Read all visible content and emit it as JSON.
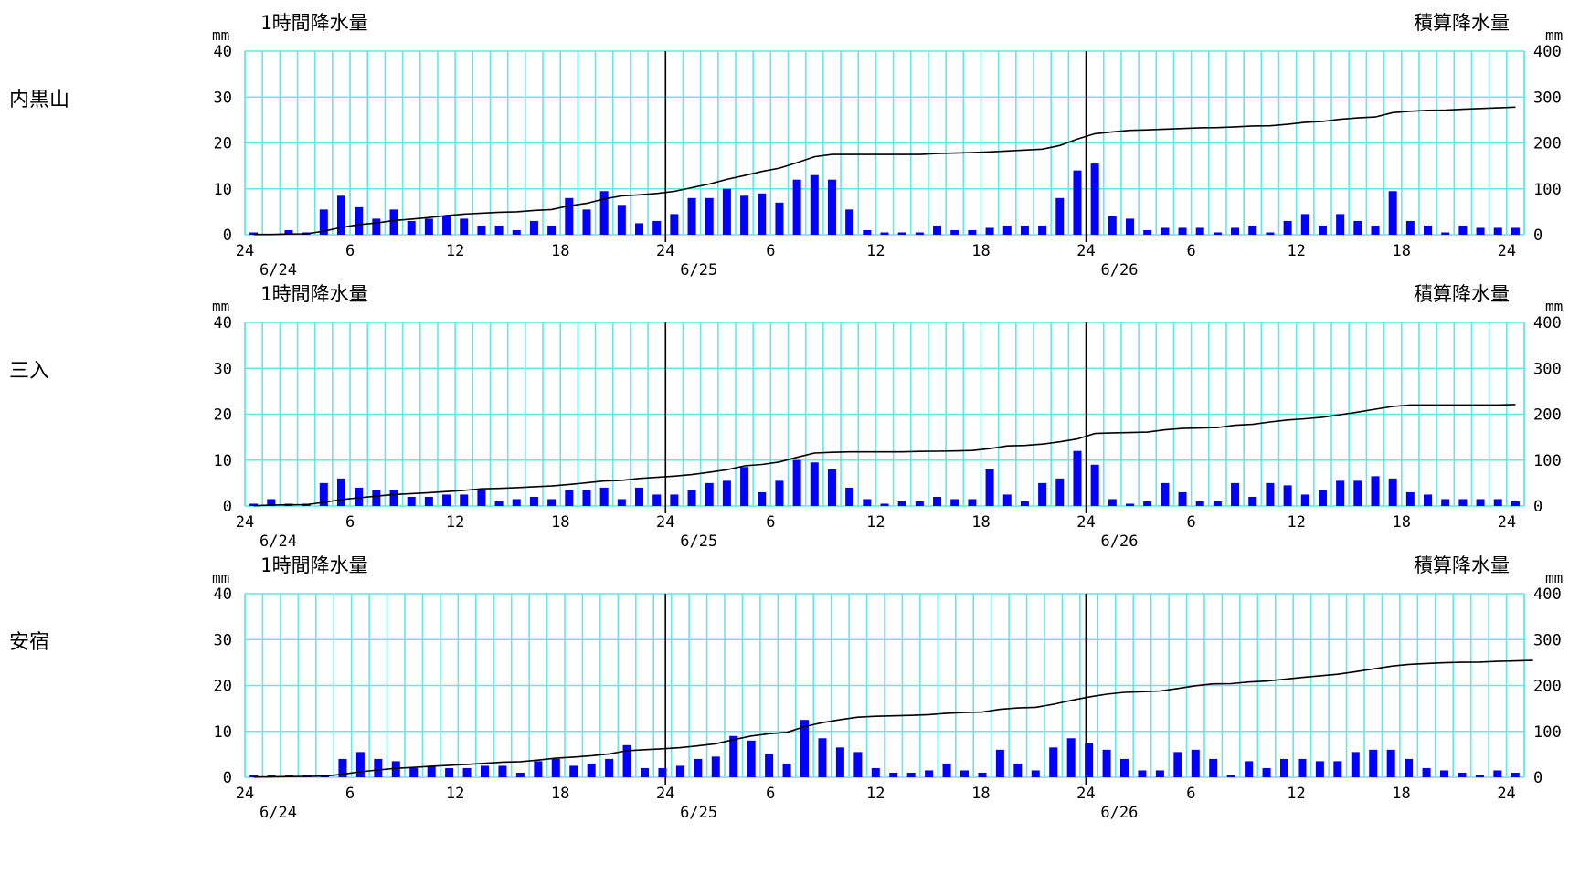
{
  "common": {
    "left_title": "1時間降水量",
    "right_title": "積算降水量",
    "left_unit": "mm",
    "right_unit": "mm",
    "colors": {
      "bar": "#0000ff",
      "grid": "#66e6e6",
      "line": "#000000",
      "day_divider": "#000000"
    }
  },
  "chart_data": [
    {
      "station": "内黒山",
      "type": "bar",
      "y_left_ticks": [
        "0",
        "10",
        "20",
        "30",
        "40"
      ],
      "y_right_ticks": [
        "0",
        "100",
        "200",
        "300",
        "400"
      ],
      "x_ticks": [
        "24",
        "6",
        "12",
        "18",
        "24",
        "6",
        "12",
        "18",
        "24",
        "6",
        "12",
        "18",
        "24"
      ],
      "dates": [
        "6/24",
        "6/25",
        "6/26"
      ],
      "ylim": [
        0,
        40
      ],
      "y2lim": [
        0,
        400
      ],
      "hourly": [
        0.5,
        0,
        1,
        0.5,
        5.5,
        8.5,
        6,
        3.5,
        5.5,
        3,
        3.5,
        4,
        3.5,
        2,
        2,
        1,
        3,
        2,
        8,
        5.5,
        9.5,
        6.5,
        2.5,
        3,
        4.5,
        8,
        8,
        10,
        8.5,
        9,
        7,
        12,
        13,
        12,
        5.5,
        1,
        0.5,
        0.5,
        0.5,
        2,
        1,
        1,
        1.5,
        2,
        2,
        2,
        8,
        14,
        15.5,
        4,
        3.5,
        1,
        1.5,
        1.5,
        1.5,
        0.5,
        1.5,
        2,
        0.5,
        3,
        4.5,
        2,
        4.5,
        3,
        2,
        9.5,
        3,
        2,
        0.5,
        2,
        1.5,
        1.5,
        1.5
      ],
      "cumulative": [
        0.5,
        0.5,
        1.5,
        2,
        7.5,
        16,
        22,
        25.5,
        31,
        34,
        37.5,
        41.5,
        45,
        47,
        49,
        50,
        53,
        55,
        63,
        68.5,
        78,
        84.5,
        87,
        90,
        94.5,
        102.5,
        110.5,
        120.5,
        129,
        138,
        145,
        157,
        170,
        175,
        175,
        175,
        175,
        175,
        175,
        177,
        178,
        179,
        180.5,
        182.5,
        184.5,
        186.5,
        194.5,
        208.5,
        220,
        224,
        227.5,
        228.5,
        230,
        231.5,
        233,
        233.5,
        235,
        237,
        237.5,
        240.5,
        245,
        247,
        251.5,
        254.5,
        256.5,
        266,
        269,
        271,
        271.5,
        273.5,
        275,
        276.5,
        278
      ]
    },
    {
      "station": "三入",
      "type": "bar",
      "y_left_ticks": [
        "0",
        "10",
        "20",
        "30",
        "40"
      ],
      "y_right_ticks": [
        "0",
        "100",
        "200",
        "300",
        "400"
      ],
      "x_ticks": [
        "24",
        "6",
        "12",
        "18",
        "24",
        "6",
        "12",
        "18",
        "24",
        "6",
        "12",
        "18",
        "24"
      ],
      "dates": [
        "6/24",
        "6/25",
        "6/26"
      ],
      "ylim": [
        0,
        40
      ],
      "y2lim": [
        0,
        400
      ],
      "hourly": [
        0.5,
        1.5,
        0.5,
        0.5,
        5,
        6,
        4,
        3.5,
        3.5,
        2,
        2,
        2.5,
        2.5,
        3.5,
        1,
        1.5,
        2,
        1.5,
        3.5,
        3.5,
        4,
        1.5,
        4,
        2.5,
        2.5,
        3.5,
        5,
        5.5,
        8.5,
        3,
        5.5,
        10,
        9.5,
        8,
        4,
        1.5,
        0.5,
        1,
        1,
        2,
        1.5,
        1.5,
        8,
        2.5,
        1,
        5,
        6,
        12,
        9,
        1.5,
        0.5,
        1,
        5,
        3,
        1,
        1,
        5,
        2,
        5,
        4.5,
        2.5,
        3.5,
        5.5,
        5.5,
        6.5,
        6,
        3,
        2.5,
        1.5,
        1.5,
        1.5,
        1.5,
        1
      ],
      "cumulative": [
        0.5,
        2,
        2.5,
        3,
        8,
        14,
        18,
        21.5,
        25,
        27,
        29,
        31.5,
        34,
        37.5,
        38.5,
        40,
        42,
        43.5,
        47,
        50.5,
        54.5,
        56,
        60,
        62.5,
        65,
        68.5,
        73.5,
        79,
        87.5,
        90.5,
        96,
        106,
        115.5,
        117,
        118,
        118,
        118,
        118,
        119,
        119.5,
        120,
        121,
        125,
        131,
        132,
        135,
        140,
        146,
        158,
        159.5,
        160,
        161,
        166,
        169,
        170,
        171,
        176,
        178,
        183,
        187.5,
        190,
        193.5,
        199,
        204.5,
        211,
        217,
        220,
        220,
        220,
        220,
        220,
        220,
        221
      ]
    },
    {
      "station": "安宿",
      "type": "bar",
      "y_left_ticks": [
        "0",
        "10",
        "20",
        "30",
        "40"
      ],
      "y_right_ticks": [
        "0",
        "100",
        "200",
        "300",
        "400"
      ],
      "x_ticks": [
        "24",
        "6",
        "12",
        "18",
        "24",
        "6",
        "12",
        "18",
        "24",
        "6",
        "12",
        "18",
        "24"
      ],
      "dates": [
        "6/24",
        "6/25",
        "6/26"
      ],
      "ylim": [
        0,
        40
      ],
      "y2lim": [
        0,
        400
      ],
      "hourly": [
        0.5,
        0.5,
        0.5,
        0.5,
        0.5,
        4,
        5.5,
        4,
        3.5,
        2,
        2.5,
        2,
        2,
        2.5,
        2.5,
        1,
        3.5,
        4,
        2.5,
        3,
        4,
        7,
        2,
        2,
        2.5,
        4,
        4.5,
        9,
        8,
        5,
        3,
        12.5,
        8.5,
        6.5,
        5.5,
        2,
        1,
        1,
        1.5,
        3,
        1.5,
        1,
        6,
        3,
        1.5,
        6.5,
        8.5,
        7.5,
        6,
        4,
        1.5,
        1.5,
        5.5,
        6,
        4,
        0.5,
        3.5,
        2,
        4,
        4,
        3.5,
        3.5,
        5.5,
        6,
        6,
        4,
        2,
        1.5,
        1,
        0.5,
        1.5,
        1
      ],
      "cumulative": [
        0.5,
        1,
        1.5,
        2,
        2.5,
        6.5,
        12,
        16,
        19.5,
        21.5,
        24,
        26,
        28,
        30.5,
        33,
        34,
        37.5,
        41.5,
        44,
        47,
        51,
        58,
        60,
        62,
        64.5,
        68.5,
        73,
        82,
        90,
        95,
        98,
        110.5,
        119,
        125.5,
        131,
        133,
        134,
        135,
        136.5,
        139.5,
        141,
        142,
        148,
        151,
        152.5,
        159,
        167.5,
        175,
        181,
        185,
        186.5,
        188,
        193.5,
        199.5,
        203.5,
        204,
        207.5,
        209.5,
        213.5,
        217.5,
        221,
        224.5,
        230,
        236,
        242,
        246,
        248,
        249.5,
        250.5,
        251,
        252.5,
        253.5,
        254.5
      ]
    }
  ]
}
